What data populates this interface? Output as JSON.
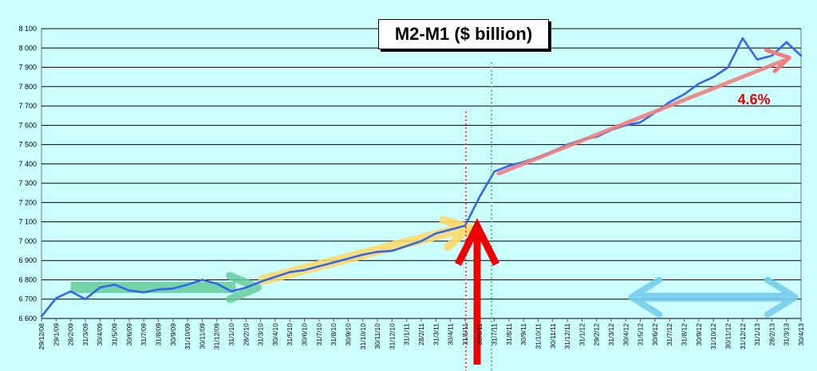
{
  "chart_data": {
    "type": "line",
    "title": "M2-M1 ($ billion)",
    "xlabel": "",
    "ylabel": "",
    "ylim": [
      6600,
      8100
    ],
    "yticks": [
      6600,
      6700,
      6800,
      6900,
      7000,
      7100,
      7200,
      7300,
      7400,
      7500,
      7600,
      7700,
      7800,
      7900,
      8000,
      8100
    ],
    "ytick_labels": [
      "6 600",
      "6 700",
      "6 800",
      "6 900",
      "7 000",
      "7 100",
      "7 200",
      "7 300",
      "7 400",
      "7 500",
      "7 600",
      "7 700",
      "7 800",
      "7 900",
      "8 000",
      "8 100"
    ],
    "xtick_labels": [
      "29/12/08",
      "29/1/09",
      "28/2/09",
      "31/3/09",
      "30/4/09",
      "31/5/09",
      "30/6/09",
      "31/7/09",
      "31/8/09",
      "30/9/09",
      "31/10/09",
      "30/11/09",
      "31/12/09",
      "31/1/10",
      "28/2/10",
      "31/3/10",
      "30/4/10",
      "31/5/10",
      "30/6/10",
      "31/7/10",
      "31/8/10",
      "30/9/10",
      "31/10/10",
      "30/11/10",
      "31/12/10",
      "31/1/11",
      "28/2/11",
      "31/3/11",
      "30/4/11",
      "31/5/11",
      "30/6/11",
      "31/7/11",
      "31/8/11",
      "30/9/11",
      "31/10/11",
      "30/11/11",
      "31/12/11",
      "31/1/12",
      "29/2/12",
      "31/3/12",
      "30/4/12",
      "31/5/12",
      "30/6/12",
      "31/7/12",
      "31/8/12",
      "30/9/12",
      "31/10/12",
      "30/11/12",
      "31/12/12",
      "31/1/13",
      "28/2/13",
      "31/3/13",
      "30/4/13"
    ],
    "grid": true,
    "series": [
      {
        "color": "#3366ee",
        "x": [
          "29/12/08",
          "29/1/09",
          "28/2/09",
          "31/3/09",
          "30/4/09",
          "31/5/09",
          "30/6/09",
          "31/7/09",
          "31/8/09",
          "30/9/09",
          "31/10/09",
          "30/11/09",
          "31/12/09",
          "31/1/10",
          "28/2/10",
          "31/3/10",
          "30/4/10",
          "31/5/10",
          "30/6/10",
          "31/7/10",
          "31/8/10",
          "30/9/10",
          "31/10/10",
          "30/11/10",
          "31/12/10",
          "31/1/11",
          "28/2/11",
          "31/3/11",
          "30/4/11",
          "31/5/11",
          "30/6/11",
          "31/7/11",
          "31/8/11",
          "30/9/11",
          "31/10/11",
          "30/11/11",
          "31/12/11",
          "31/1/12",
          "29/2/12",
          "31/3/12",
          "30/4/12",
          "31/5/12",
          "30/6/12",
          "31/7/12",
          "31/8/12",
          "30/9/12",
          "31/10/12",
          "30/11/12",
          "31/12/12",
          "31/1/13",
          "28/2/13",
          "31/3/13",
          "30/4/13"
        ],
        "values": [
          6610,
          6705,
          6740,
          6700,
          6760,
          6775,
          6745,
          6735,
          6750,
          6755,
          6775,
          6800,
          6780,
          6740,
          6760,
          6790,
          6815,
          6840,
          6850,
          6870,
          6890,
          6910,
          6930,
          6945,
          6950,
          6975,
          7000,
          7040,
          7060,
          7080,
          7230,
          7360,
          7390,
          7410,
          7435,
          7465,
          7500,
          7525,
          7540,
          7575,
          7600,
          7615,
          7665,
          7720,
          7760,
          7815,
          7850,
          7900,
          8050,
          7940,
          7960,
          8030,
          7960
        ]
      }
    ],
    "annotations": [
      {
        "label": "4.6%",
        "color": "#ee0000"
      }
    ]
  }
}
